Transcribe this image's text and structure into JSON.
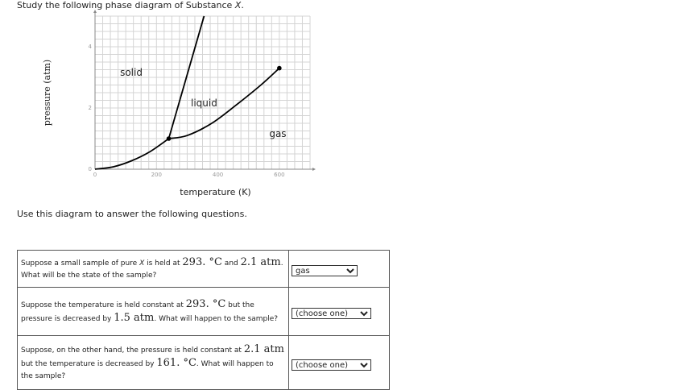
{
  "intro": {
    "prefix": "Study the following phase diagram of Substance ",
    "substance": "X",
    "suffix": "."
  },
  "diagram": {
    "xlabel": "temperature (K)",
    "ylabel": "pressure (atm)",
    "x_ticks": [
      "0",
      "200",
      "400",
      "600"
    ],
    "y_ticks": [
      "0",
      "2",
      "4"
    ],
    "xlim": [
      0,
      700
    ],
    "ylim": [
      0,
      5
    ],
    "regions": {
      "solid": "solid",
      "liquid": "liquid",
      "gas": "gas"
    },
    "triple_point": {
      "T": 240,
      "P": 1.0
    },
    "critical_point": {
      "T": 600,
      "P": 3.3
    },
    "sublimation_curve": [
      [
        0,
        0
      ],
      [
        60,
        0.08
      ],
      [
        120,
        0.28
      ],
      [
        180,
        0.58
      ],
      [
        240,
        1.0
      ]
    ],
    "vaporization_curve": [
      [
        240,
        1.0
      ],
      [
        300,
        1.1
      ],
      [
        380,
        1.5
      ],
      [
        460,
        2.1
      ],
      [
        540,
        2.75
      ],
      [
        600,
        3.3
      ]
    ],
    "fusion_curve": [
      [
        240,
        1.0
      ],
      [
        355,
        5.0
      ]
    ]
  },
  "use_text": "Use this diagram to answer the following questions.",
  "questions": [
    {
      "a": "Suppose a small sample of pure ",
      "sub": "X",
      "b": " is held at ",
      "v1": "293. °C",
      "c": " and ",
      "v2": "2.1 atm",
      "d": ".",
      "e": "What will be the state of the sample?",
      "selected": "gas"
    },
    {
      "a": "Suppose the temperature is held constant at ",
      "v1": "293. °C",
      "b": " but the pressure is decreased by ",
      "v2": "1.5 atm",
      "c": ". What will happen to the sample?",
      "selected": "(choose one)"
    },
    {
      "a": "Suppose, on the other hand, the pressure is held constant at ",
      "v1": "2.1 atm",
      "b": " but the temperature is decreased by ",
      "v2": "161. °C",
      "c": ". What will happen to the sample?",
      "selected": "(choose one)"
    }
  ]
}
